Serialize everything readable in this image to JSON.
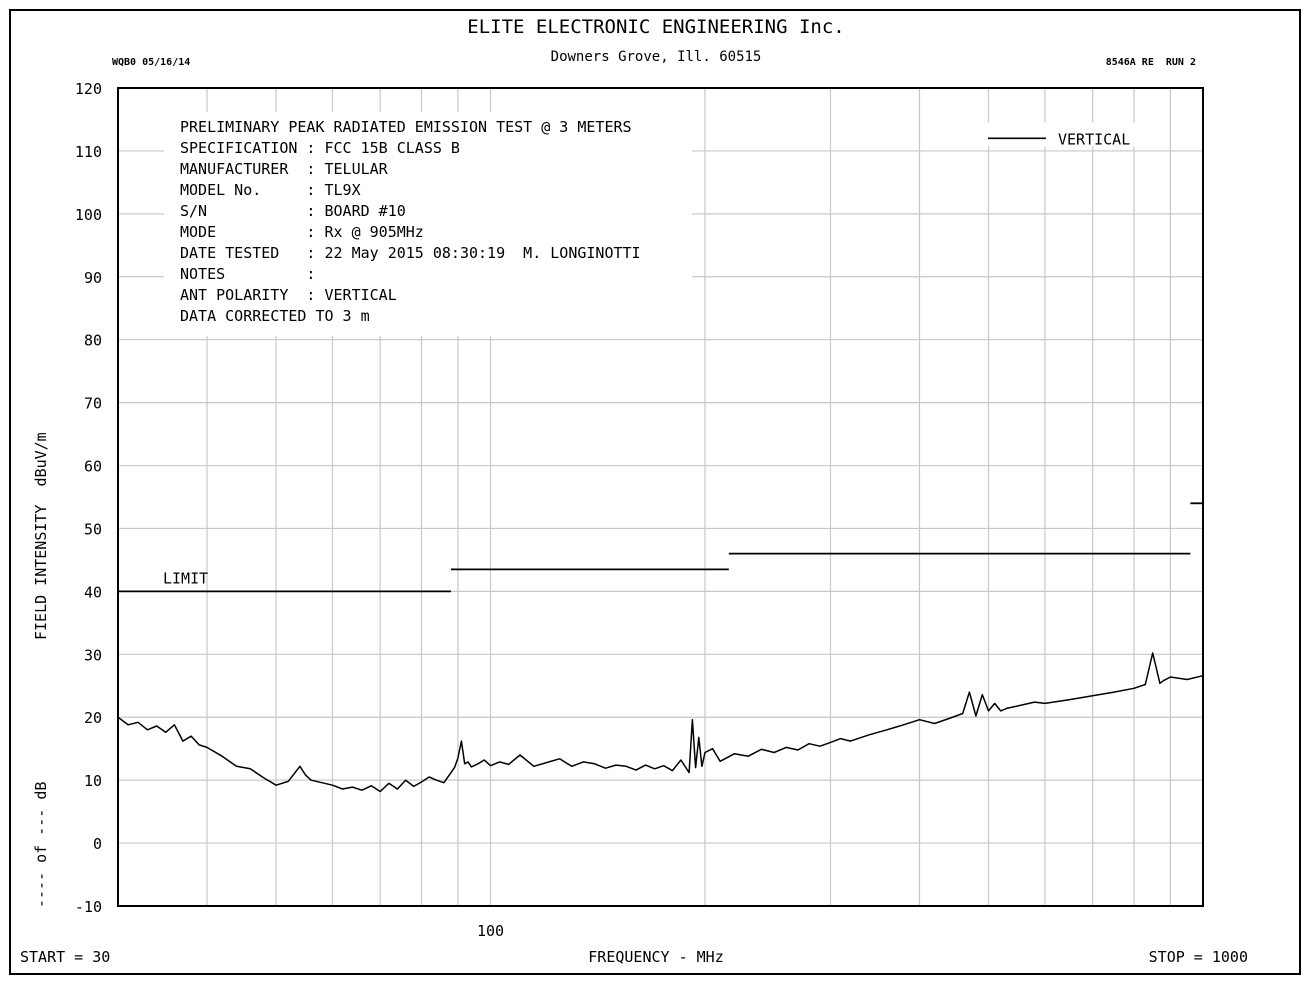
{
  "header": {
    "title": "ELITE ELECTRONIC ENGINEERING Inc.",
    "subtitle": "Downers Grove, Ill. 60515",
    "code_left": "WQB0 05/16/14",
    "code_right": "8546A RE  RUN 2"
  },
  "footer": {
    "start_label": "START = 30",
    "stop_label": "STOP = 1000"
  },
  "chart_data": {
    "type": "line",
    "title": "ELITE ELECTRONIC ENGINEERING Inc.",
    "subtitle": "Downers Grove, Ill. 60515",
    "xlabel": "FREQUENCY - MHz",
    "ylabel": "FIELD INTENSITY  dBuV/m",
    "ylabel_secondary": "---- of --- dB",
    "x_scale": "log",
    "xlim": [
      30,
      1000
    ],
    "ylim": [
      -10,
      120
    ],
    "y_ticks": [
      120,
      110,
      100,
      90,
      80,
      70,
      60,
      50,
      40,
      30,
      20,
      10,
      0,
      -10
    ],
    "x_tick_labels": [
      {
        "value": 100,
        "label": "100"
      }
    ],
    "x_gridlines": [
      40,
      50,
      60,
      70,
      80,
      90,
      100,
      200,
      300,
      400,
      500,
      600,
      700,
      800,
      900,
      1000
    ],
    "grid": true,
    "info_box": [
      "PRELIMINARY PEAK RADIATED EMISSION TEST @ 3 METERS",
      "SPECIFICATION : FCC 15B CLASS B",
      "MANUFACTURER  : TELULAR",
      "MODEL No.     : TL9X",
      "S/N           : BOARD #10",
      "MODE          : Rx @ 905MHz",
      "DATE TESTED   : 22 May 2015 08:30:19  M. LONGINOTTI",
      "NOTES         :",
      "ANT POLARITY  : VERTICAL",
      "DATA CORRECTED TO 3 m"
    ],
    "legend": {
      "label": "VERTICAL",
      "placement": "top-right"
    },
    "limit_label": "LIMIT",
    "limit_segments": [
      {
        "x": [
          30,
          88
        ],
        "y": 40.0
      },
      {
        "x": [
          88,
          216
        ],
        "y": 43.5
      },
      {
        "x": [
          216,
          960
        ],
        "y": 46.0
      },
      {
        "x": [
          960,
          1000
        ],
        "y": 54.0
      }
    ],
    "series": [
      {
        "name": "VERTICAL",
        "x": [
          30,
          31,
          32,
          33,
          34,
          35,
          36,
          37,
          38,
          39,
          40,
          42,
          44,
          46,
          48,
          50,
          52,
          54,
          55,
          56,
          58,
          60,
          62,
          64,
          66,
          68,
          70,
          72,
          74,
          76,
          78,
          80,
          82,
          84,
          86,
          88,
          89,
          90,
          91,
          92,
          93,
          94,
          96,
          98,
          100,
          103,
          106,
          110,
          115,
          120,
          125,
          130,
          135,
          140,
          145,
          150,
          155,
          160,
          165,
          170,
          175,
          180,
          185,
          190,
          192,
          194,
          196,
          198,
          200,
          205,
          210,
          220,
          230,
          240,
          250,
          260,
          270,
          280,
          290,
          300,
          310,
          320,
          340,
          360,
          380,
          400,
          420,
          440,
          460,
          470,
          480,
          490,
          500,
          510,
          520,
          530,
          550,
          580,
          600,
          650,
          700,
          750,
          800,
          830,
          850,
          870,
          880,
          900,
          950,
          1000
        ],
        "y": [
          20.0,
          18.8,
          19.2,
          18.0,
          18.6,
          17.6,
          18.8,
          16.2,
          17.0,
          15.6,
          15.2,
          13.8,
          12.2,
          11.8,
          10.4,
          9.2,
          9.8,
          12.2,
          10.8,
          10.0,
          9.6,
          9.2,
          8.6,
          8.9,
          8.4,
          9.1,
          8.2,
          9.5,
          8.6,
          10.0,
          9.0,
          9.7,
          10.5,
          10.0,
          9.6,
          11.2,
          12.0,
          13.5,
          16.2,
          12.6,
          12.9,
          12.1,
          12.6,
          13.2,
          12.3,
          12.9,
          12.5,
          14.0,
          12.2,
          12.8,
          13.4,
          12.2,
          12.9,
          12.6,
          11.9,
          12.4,
          12.2,
          11.6,
          12.4,
          11.8,
          12.3,
          11.5,
          13.2,
          11.2,
          19.6,
          12.0,
          16.8,
          12.2,
          14.4,
          15.0,
          13.0,
          14.2,
          13.8,
          14.9,
          14.4,
          15.2,
          14.8,
          15.8,
          15.4,
          16.0,
          16.6,
          16.2,
          17.2,
          18.0,
          18.8,
          19.6,
          19.0,
          19.8,
          20.6,
          24.0,
          20.2,
          23.6,
          21.0,
          22.2,
          21.0,
          21.4,
          21.8,
          22.4,
          22.2,
          22.8,
          23.4,
          24.0,
          24.6,
          25.2,
          30.2,
          25.4,
          25.8,
          26.4,
          26.0,
          26.6
        ]
      }
    ]
  }
}
